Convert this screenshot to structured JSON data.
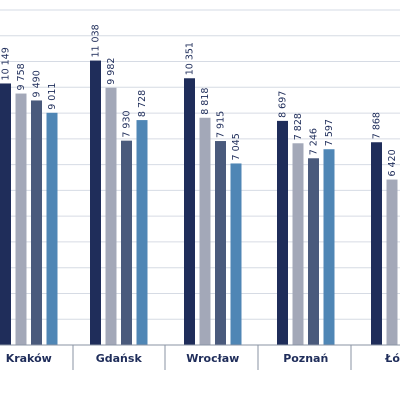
{
  "chart_data": {
    "type": "bar",
    "categories": [
      "Kraków",
      "Gdańsk",
      "Wrocław",
      "Poznań",
      "Łódź"
    ],
    "series": [
      {
        "values": [
          10149,
          11038,
          10351,
          8697,
          7868
        ],
        "color": "#1f2d5a"
      },
      {
        "values": [
          9758,
          9982,
          8818,
          7828,
          6420
        ],
        "color": "#a3a8b8"
      },
      {
        "values": [
          9490,
          7930,
          7915,
          7246,
          null
        ],
        "color": "#4a5a7c"
      },
      {
        "values": [
          9011,
          8728,
          7045,
          7597,
          null
        ],
        "color": "#4f86b5"
      }
    ],
    "value_labels": [
      [
        "10 149",
        "11 038",
        "10 351",
        "8 697",
        "7 868"
      ],
      [
        "9 758",
        "9 982",
        "8 818",
        "7 828",
        "6 420"
      ],
      [
        "9 490",
        "7 930",
        "7 915",
        "7 246",
        ""
      ],
      [
        "9 011",
        "8 728",
        "7 045",
        "7 597",
        ""
      ]
    ],
    "ylim": [
      0,
      13000
    ],
    "grid": true,
    "legend": "none"
  }
}
